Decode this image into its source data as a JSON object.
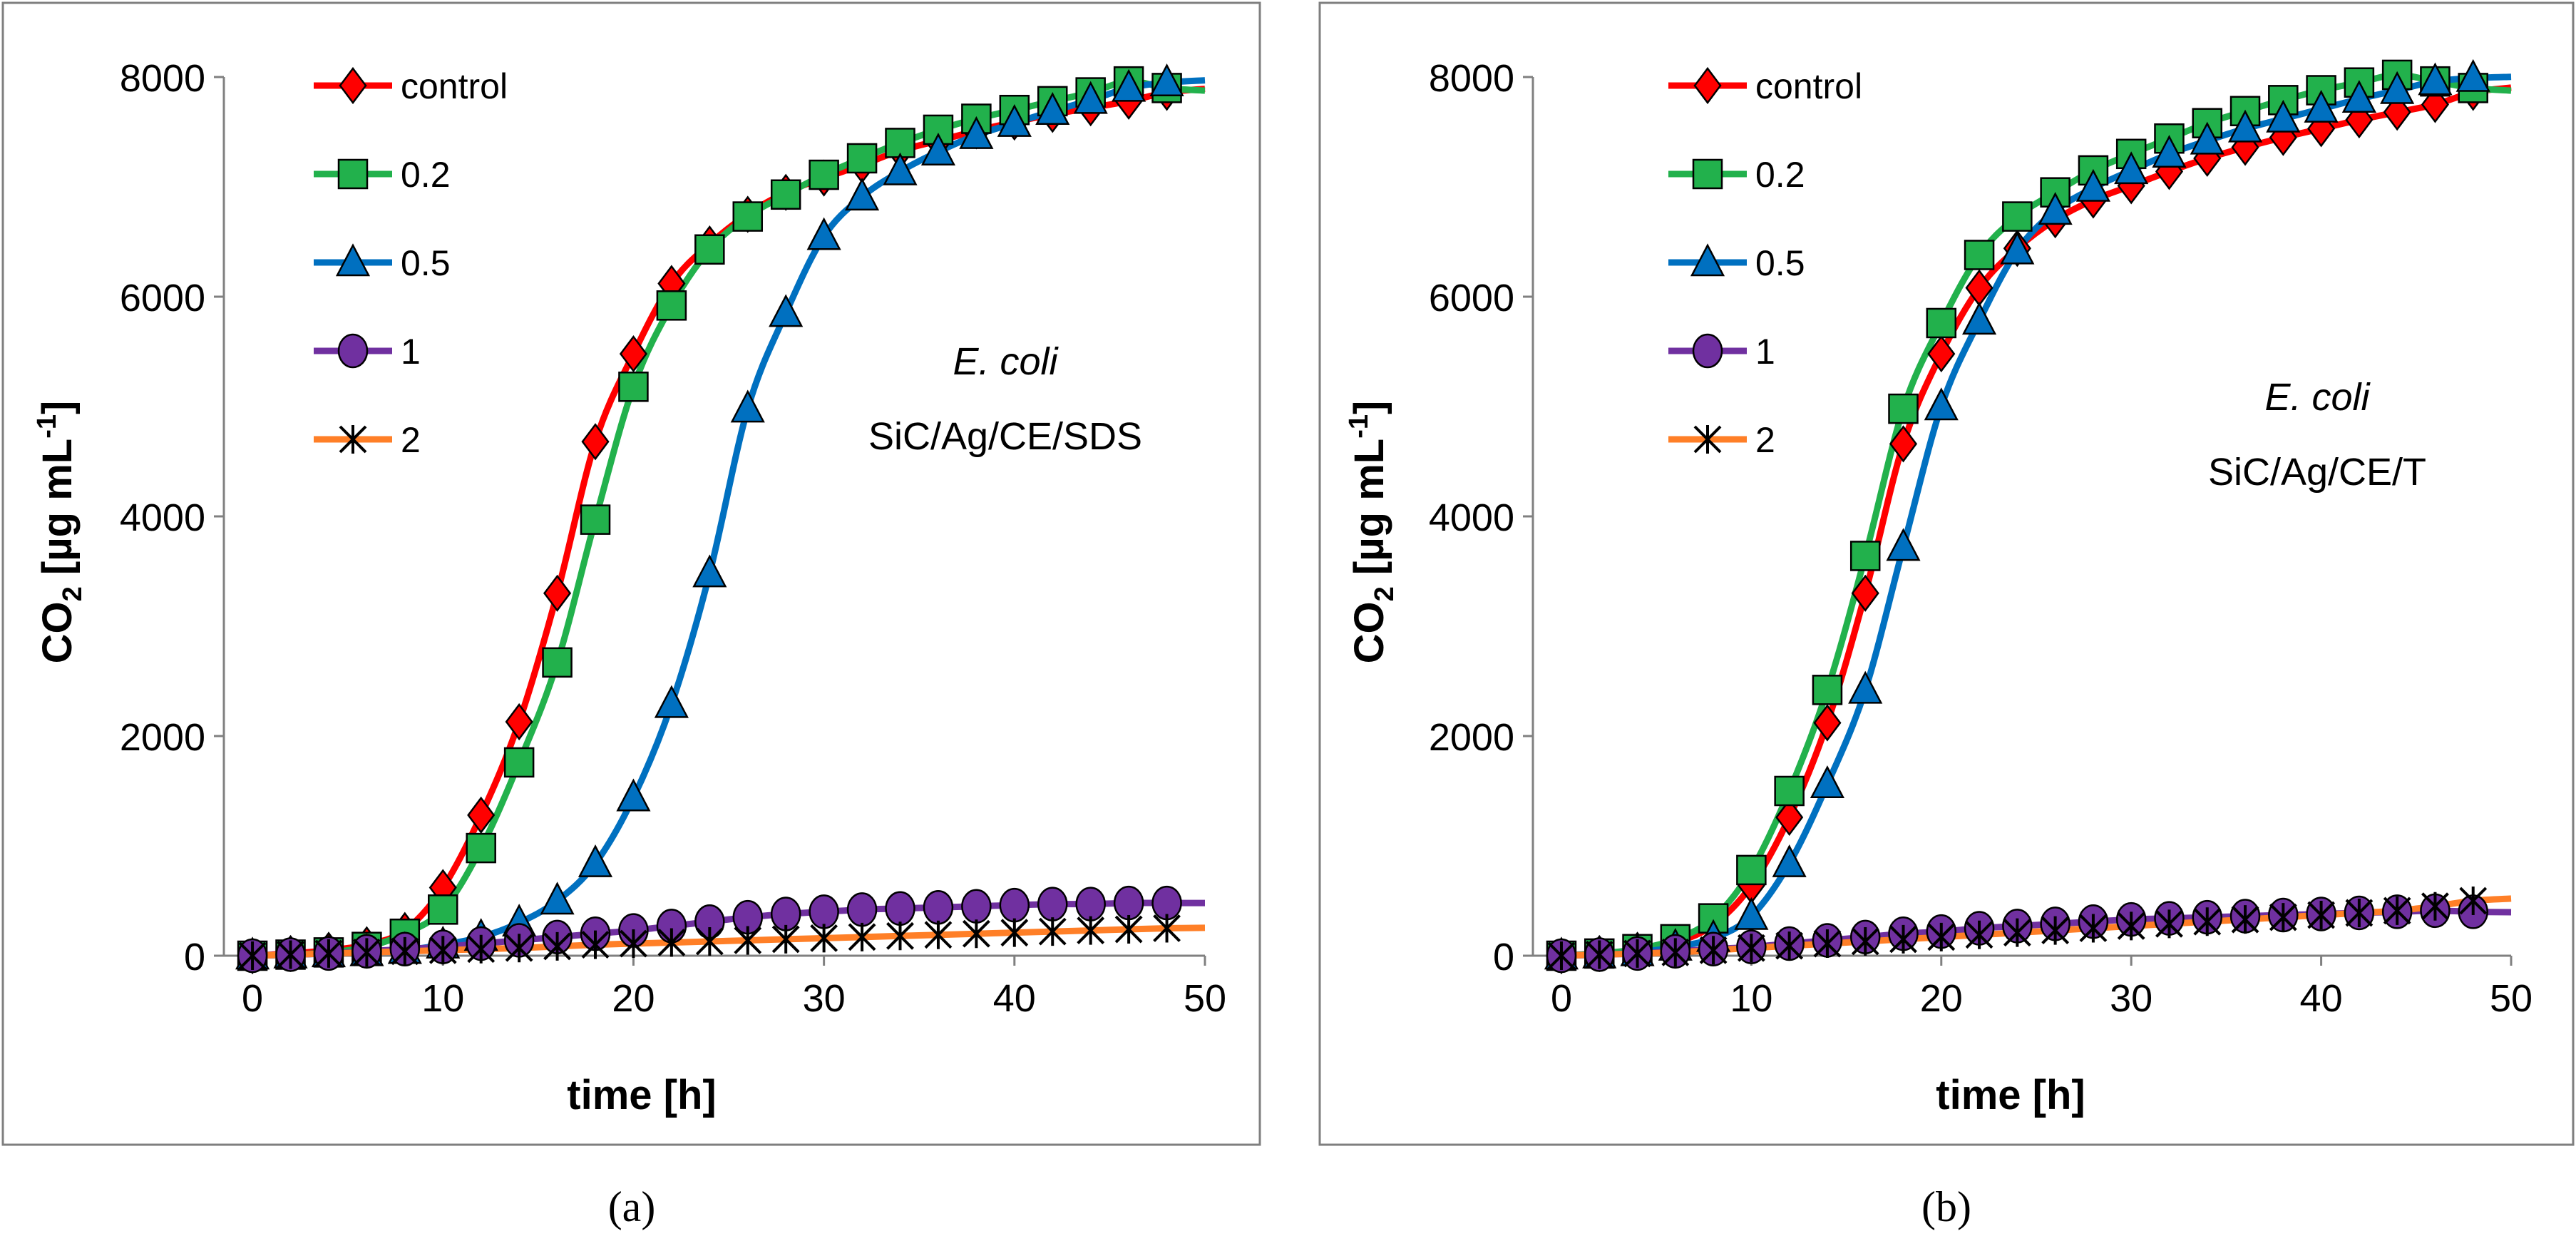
{
  "chart_data": [
    {
      "type": "line",
      "panel_label": "(a)",
      "annotation": {
        "organism": "E. coli",
        "material": "SiC/Ag/CE/SDS"
      },
      "xlabel": "time [h]",
      "ylabel": {
        "prefix": "CO",
        "sub": "2",
        "suffix": " [µg mL",
        "sup": "-1",
        "close": "]"
      },
      "xlim": [
        -1.5,
        50
      ],
      "ylim": [
        0,
        8000
      ],
      "xticks": [
        0,
        10,
        20,
        30,
        40,
        50
      ],
      "yticks": [
        0,
        2000,
        4000,
        6000,
        8000
      ],
      "grid": false,
      "legend_position": "top-left",
      "x": [
        0,
        2,
        4,
        6,
        8,
        10,
        12,
        14,
        16,
        18,
        20,
        22,
        24,
        26,
        28,
        30,
        32,
        34,
        36,
        38,
        40,
        42,
        44,
        46,
        48
      ],
      "series": [
        {
          "name": "control",
          "color": "#ff0000",
          "marker": "diamond",
          "marker_fill": "#ff0000",
          "values": [
            0,
            20,
            50,
            100,
            230,
            620,
            1280,
            2130,
            3300,
            4680,
            5480,
            6120,
            6480,
            6750,
            6950,
            7080,
            7200,
            7330,
            7420,
            7510,
            7590,
            7660,
            7720,
            7780,
            7860
          ]
        },
        {
          "name": "0.2",
          "color": "#22b14c",
          "marker": "square",
          "marker_fill": "#22b14c",
          "values": [
            0,
            10,
            30,
            80,
            200,
            420,
            980,
            1760,
            2670,
            3970,
            5180,
            5920,
            6430,
            6730,
            6930,
            7110,
            7260,
            7400,
            7520,
            7620,
            7700,
            7780,
            7860,
            7960,
            7900
          ]
        },
        {
          "name": "0.5",
          "color": "#0070c0",
          "marker": "triangle",
          "marker_fill": "#0070c0",
          "values": [
            0,
            10,
            20,
            30,
            50,
            100,
            170,
            300,
            500,
            840,
            1440,
            2290,
            3480,
            4980,
            5850,
            6550,
            6910,
            7140,
            7320,
            7470,
            7580,
            7690,
            7790,
            7900,
            7950
          ]
        },
        {
          "name": "1",
          "color": "#7030a0",
          "marker": "circle",
          "marker_fill": "#7030a0",
          "values": [
            0,
            10,
            20,
            40,
            60,
            80,
            110,
            140,
            170,
            200,
            230,
            270,
            310,
            350,
            380,
            400,
            420,
            430,
            440,
            450,
            460,
            470,
            470,
            480,
            480
          ]
        },
        {
          "name": "2",
          "color": "#ff7f27",
          "marker": "star",
          "marker_fill": "#000000",
          "values": [
            0,
            10,
            20,
            30,
            40,
            50,
            60,
            70,
            85,
            100,
            110,
            120,
            130,
            140,
            150,
            160,
            170,
            180,
            190,
            200,
            210,
            220,
            230,
            240,
            250
          ]
        }
      ]
    },
    {
      "type": "line",
      "panel_label": "(b)",
      "annotation": {
        "organism": "E. coli",
        "material": "SiC/Ag/CE/T"
      },
      "xlabel": "time [h]",
      "ylabel": {
        "prefix": "CO",
        "sub": "2",
        "suffix": " [µg mL",
        "sup": "-1",
        "close": "]"
      },
      "xlim": [
        -1.5,
        50
      ],
      "ylim": [
        0,
        8000
      ],
      "xticks": [
        0,
        10,
        20,
        30,
        40,
        50
      ],
      "yticks": [
        0,
        2000,
        4000,
        6000,
        8000
      ],
      "grid": false,
      "legend_position": "top-left",
      "x": [
        0,
        2,
        4,
        6,
        8,
        10,
        12,
        14,
        16,
        18,
        20,
        22,
        24,
        26,
        28,
        30,
        32,
        34,
        36,
        38,
        40,
        42,
        44,
        46,
        48
      ],
      "series": [
        {
          "name": "control",
          "color": "#ff0000",
          "marker": "diamond",
          "marker_fill": "#ff0000",
          "values": [
            0,
            20,
            50,
            120,
            280,
            640,
            1260,
            2120,
            3300,
            4660,
            5480,
            6080,
            6440,
            6700,
            6880,
            7010,
            7140,
            7260,
            7360,
            7450,
            7530,
            7610,
            7680,
            7750,
            7860
          ]
        },
        {
          "name": "0.2",
          "color": "#22b14c",
          "marker": "square",
          "marker_fill": "#22b14c",
          "values": [
            0,
            20,
            60,
            150,
            340,
            780,
            1500,
            2420,
            3640,
            4980,
            5760,
            6380,
            6730,
            6950,
            7150,
            7300,
            7440,
            7580,
            7690,
            7790,
            7880,
            7950,
            8020,
            7960,
            7900
          ]
        },
        {
          "name": "0.5",
          "color": "#0070c0",
          "marker": "triangle",
          "marker_fill": "#0070c0",
          "values": [
            0,
            10,
            30,
            80,
            160,
            360,
            840,
            1560,
            2420,
            3720,
            5000,
            5780,
            6420,
            6780,
            6990,
            7150,
            7300,
            7420,
            7530,
            7620,
            7710,
            7800,
            7880,
            7960,
            7990
          ]
        },
        {
          "name": "1",
          "color": "#7030a0",
          "marker": "circle",
          "marker_fill": "#7030a0",
          "values": [
            0,
            10,
            20,
            40,
            60,
            80,
            110,
            140,
            170,
            200,
            220,
            250,
            270,
            290,
            310,
            330,
            340,
            350,
            360,
            370,
            380,
            390,
            400,
            410,
            400
          ]
        },
        {
          "name": "2",
          "color": "#ff7f27",
          "marker": "star",
          "marker_fill": "#000000",
          "values": [
            0,
            10,
            20,
            30,
            50,
            70,
            90,
            110,
            130,
            150,
            170,
            190,
            210,
            230,
            250,
            270,
            290,
            310,
            330,
            350,
            370,
            390,
            410,
            450,
            500
          ]
        }
      ]
    }
  ]
}
